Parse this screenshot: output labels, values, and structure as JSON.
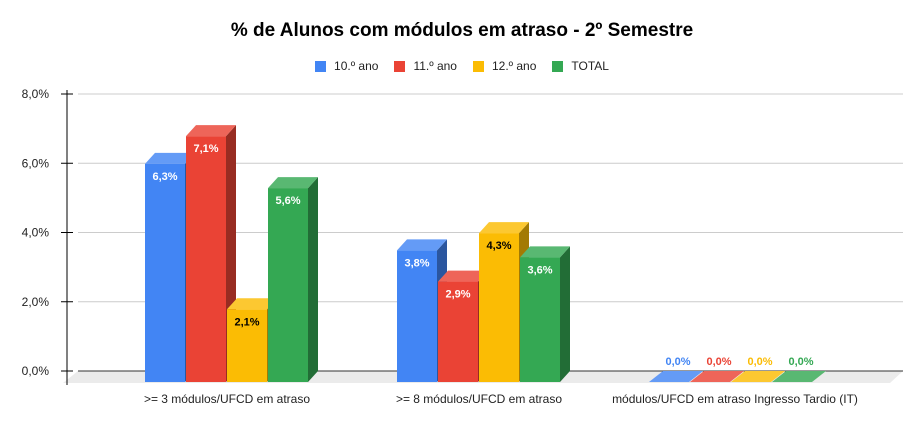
{
  "chart_data": {
    "type": "bar",
    "title": "% de Alunos com módulos em atraso - 2º Semestre",
    "categories": [
      ">= 3 módulos/UFCD em atraso",
      ">= 8 módulos/UFCD em atraso",
      "módulos/UFCD em atraso Ingresso Tardio (IT)"
    ],
    "series": [
      {
        "name": "10.º ano",
        "color": "#4285F4",
        "values": [
          6.3,
          3.8,
          0.0
        ],
        "labels": [
          "6,3%",
          "3,8%",
          "0,0%"
        ]
      },
      {
        "name": "11.º ano",
        "color": "#EA4335",
        "values": [
          7.1,
          2.9,
          0.0
        ],
        "labels": [
          "7,1%",
          "2,9%",
          "0,0%"
        ]
      },
      {
        "name": "12.º ano",
        "color": "#FBBC04",
        "values": [
          2.1,
          4.3,
          0.0
        ],
        "labels": [
          "2,1%",
          "4,3%",
          "0,0%"
        ]
      },
      {
        "name": "TOTAL",
        "color": "#34A853",
        "values": [
          5.6,
          3.6,
          0.0
        ],
        "labels": [
          "5,6%",
          "3,6%",
          "0,0%"
        ]
      }
    ],
    "yticks": [
      "0,0%",
      "2,0%",
      "4,0%",
      "6,0%",
      "8,0%"
    ],
    "ylim": [
      0,
      8
    ],
    "xlabel": "",
    "ylabel": "",
    "grid": true,
    "legend_position": "top",
    "style": "3d"
  }
}
